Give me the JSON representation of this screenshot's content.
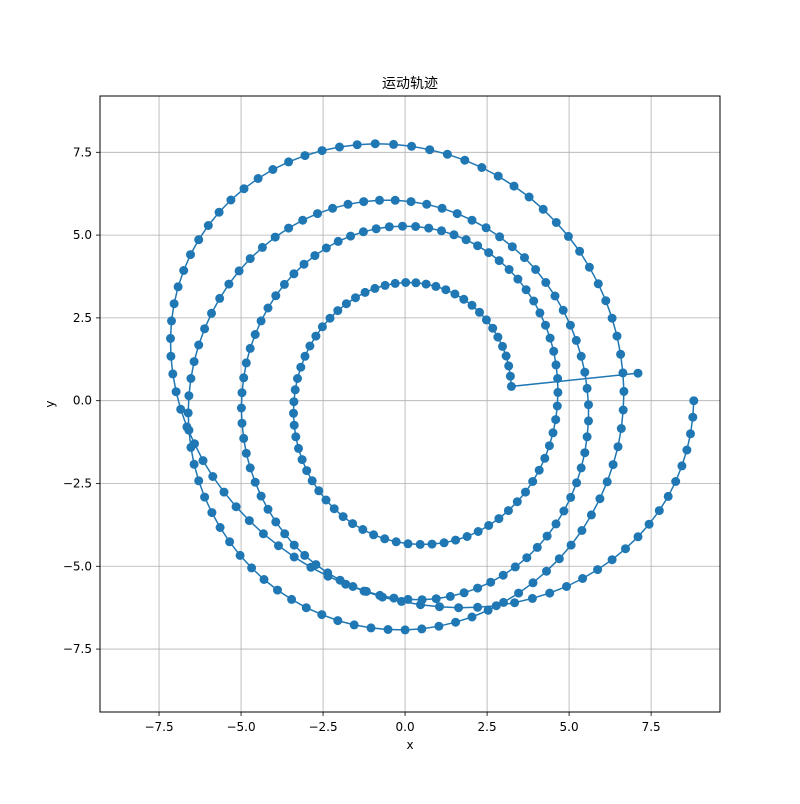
{
  "chart_data": {
    "type": "line",
    "title": "运动轨迹",
    "xlabel": "x",
    "ylabel": "y",
    "xlim": [
      -9.3,
      9.6
    ],
    "ylim": [
      -9.4,
      9.2
    ],
    "xticks": [
      -7.5,
      -5.0,
      -2.5,
      0.0,
      2.5,
      5.0,
      7.5
    ],
    "xtick_labels": [
      "−7.5",
      "−5.0",
      "−2.5",
      "0.0",
      "2.5",
      "5.0",
      "7.5"
    ],
    "yticks": [
      -7.5,
      -5.0,
      -2.5,
      0.0,
      2.5,
      5.0,
      7.5
    ],
    "ytick_labels": [
      "−7.5",
      "−5.0",
      "−2.5",
      "0.0",
      "2.5",
      "5.0",
      "7.5"
    ],
    "grid": true,
    "legend": false,
    "marker": "circle",
    "color": "#1f77b4",
    "series": [
      {
        "values": [
          [
            8.8,
            0.0
          ],
          [
            8.77,
            -0.5
          ],
          [
            8.7,
            -1.0
          ],
          [
            8.59,
            -1.49
          ],
          [
            8.44,
            -1.97
          ],
          [
            8.25,
            -2.44
          ],
          [
            8.02,
            -2.89
          ],
          [
            7.75,
            -3.32
          ],
          [
            7.44,
            -3.73
          ],
          [
            7.1,
            -4.11
          ],
          [
            6.72,
            -4.47
          ],
          [
            6.31,
            -4.8
          ],
          [
            5.87,
            -5.1
          ],
          [
            5.41,
            -5.37
          ],
          [
            4.92,
            -5.61
          ],
          [
            4.41,
            -5.81
          ],
          [
            3.88,
            -5.97
          ],
          [
            3.34,
            -6.1
          ],
          [
            2.78,
            -6.19
          ],
          [
            2.21,
            -6.24
          ],
          [
            1.63,
            -6.25
          ],
          [
            1.05,
            -6.22
          ],
          [
            0.47,
            -6.16
          ],
          [
            -0.11,
            -6.06
          ],
          [
            -0.69,
            -5.93
          ],
          [
            -1.25,
            -5.75
          ],
          [
            -1.81,
            -5.54
          ],
          [
            -2.35,
            -5.3
          ],
          [
            -2.87,
            -5.03
          ],
          [
            -3.38,
            -4.72
          ],
          [
            -3.86,
            -4.38
          ],
          [
            -4.32,
            -4.02
          ],
          [
            -4.75,
            -3.62
          ],
          [
            -5.15,
            -3.2
          ],
          [
            -5.52,
            -2.76
          ],
          [
            -5.86,
            -2.29
          ],
          [
            -6.16,
            -1.81
          ],
          [
            -6.42,
            -1.3
          ],
          [
            -6.65,
            -0.79
          ],
          [
            -6.84,
            -0.26
          ],
          [
            -6.98,
            0.27
          ],
          [
            -7.08,
            0.81
          ],
          [
            -7.14,
            1.34
          ],
          [
            -7.15,
            1.88
          ],
          [
            -7.12,
            2.41
          ],
          [
            -7.04,
            2.93
          ],
          [
            -6.92,
            3.44
          ],
          [
            -6.75,
            3.93
          ],
          [
            -6.54,
            4.41
          ],
          [
            -6.29,
            4.86
          ],
          [
            -6.0,
            5.29
          ],
          [
            -5.67,
            5.69
          ],
          [
            -5.31,
            6.06
          ],
          [
            -4.91,
            6.4
          ],
          [
            -4.48,
            6.71
          ],
          [
            -4.03,
            6.98
          ],
          [
            -3.55,
            7.21
          ],
          [
            -3.05,
            7.4
          ],
          [
            -2.53,
            7.55
          ],
          [
            -2.0,
            7.66
          ],
          [
            -1.46,
            7.73
          ],
          [
            -0.91,
            7.76
          ],
          [
            -0.35,
            7.74
          ],
          [
            0.2,
            7.68
          ],
          [
            0.75,
            7.58
          ],
          [
            1.29,
            7.44
          ],
          [
            1.82,
            7.26
          ],
          [
            2.34,
            7.04
          ],
          [
            2.84,
            6.78
          ],
          [
            3.32,
            6.48
          ],
          [
            3.78,
            6.15
          ],
          [
            4.21,
            5.78
          ],
          [
            4.61,
            5.38
          ],
          [
            4.98,
            4.96
          ],
          [
            5.32,
            4.51
          ],
          [
            5.62,
            4.03
          ],
          [
            5.89,
            3.53
          ],
          [
            6.12,
            3.02
          ],
          [
            6.31,
            2.49
          ],
          [
            6.46,
            1.95
          ],
          [
            6.57,
            1.4
          ],
          [
            6.64,
            0.84
          ],
          [
            6.67,
            0.28
          ],
          [
            6.65,
            -0.28
          ],
          [
            6.59,
            -0.84
          ],
          [
            6.49,
            -1.39
          ],
          [
            6.34,
            -1.93
          ],
          [
            6.16,
            -2.45
          ],
          [
            5.94,
            -2.96
          ],
          [
            5.68,
            -3.45
          ],
          [
            5.39,
            -3.92
          ],
          [
            5.06,
            -4.36
          ],
          [
            4.7,
            -4.77
          ],
          [
            4.31,
            -5.15
          ],
          [
            3.9,
            -5.5
          ],
          [
            3.46,
            -5.81
          ],
          [
            3.0,
            -6.09
          ],
          [
            2.53,
            -6.33
          ],
          [
            2.04,
            -6.53
          ],
          [
            1.54,
            -6.69
          ],
          [
            1.03,
            -6.81
          ],
          [
            0.51,
            -6.89
          ],
          [
            0.0,
            -6.92
          ],
          [
            -0.52,
            -6.91
          ],
          [
            -1.04,
            -6.86
          ],
          [
            -1.55,
            -6.77
          ],
          [
            -2.05,
            -6.64
          ],
          [
            -2.54,
            -6.46
          ],
          [
            -3.01,
            -6.25
          ],
          [
            -3.46,
            -6.0
          ],
          [
            -3.89,
            -5.72
          ],
          [
            -4.3,
            -5.4
          ],
          [
            -4.68,
            -5.05
          ],
          [
            -5.03,
            -4.67
          ],
          [
            -5.35,
            -4.26
          ],
          [
            -5.64,
            -3.83
          ],
          [
            -5.89,
            -3.38
          ],
          [
            -6.11,
            -2.91
          ],
          [
            -6.29,
            -2.42
          ],
          [
            -6.43,
            -1.92
          ],
          [
            -6.53,
            -1.41
          ],
          [
            -6.59,
            -0.89
          ],
          [
            -6.61,
            -0.37
          ],
          [
            -6.59,
            0.15
          ],
          [
            -6.53,
            0.67
          ],
          [
            -6.43,
            1.18
          ],
          [
            -6.29,
            1.68
          ],
          [
            -6.11,
            2.17
          ],
          [
            -5.9,
            2.64
          ],
          [
            -5.65,
            3.09
          ],
          [
            -5.37,
            3.52
          ],
          [
            -5.06,
            3.92
          ],
          [
            -4.72,
            4.29
          ],
          [
            -4.35,
            4.63
          ],
          [
            -3.96,
            4.94
          ],
          [
            -3.55,
            5.21
          ],
          [
            -3.12,
            5.45
          ],
          [
            -2.67,
            5.65
          ],
          [
            -2.21,
            5.81
          ],
          [
            -1.74,
            5.93
          ],
          [
            -1.26,
            6.01
          ],
          [
            -0.78,
            6.05
          ],
          [
            -0.3,
            6.05
          ],
          [
            0.18,
            6.01
          ],
          [
            0.66,
            5.93
          ],
          [
            1.13,
            5.81
          ],
          [
            1.59,
            5.65
          ],
          [
            2.04,
            5.45
          ],
          [
            2.47,
            5.22
          ],
          [
            2.88,
            4.95
          ],
          [
            3.27,
            4.65
          ],
          [
            3.64,
            4.32
          ],
          [
            3.98,
            3.96
          ],
          [
            4.29,
            3.57
          ],
          [
            4.57,
            3.16
          ],
          [
            4.82,
            2.73
          ],
          [
            5.04,
            2.28
          ],
          [
            5.22,
            1.82
          ],
          [
            5.37,
            1.34
          ],
          [
            5.48,
            0.86
          ],
          [
            5.55,
            0.37
          ],
          [
            5.59,
            -0.12
          ],
          [
            5.59,
            -0.61
          ],
          [
            5.55,
            -1.09
          ],
          [
            5.48,
            -1.57
          ],
          [
            5.37,
            -2.03
          ],
          [
            5.23,
            -2.48
          ],
          [
            5.05,
            -2.92
          ],
          [
            4.84,
            -3.33
          ],
          [
            4.6,
            -3.72
          ],
          [
            4.33,
            -4.09
          ],
          [
            4.03,
            -4.43
          ],
          [
            3.71,
            -4.74
          ],
          [
            3.36,
            -5.02
          ],
          [
            2.99,
            -5.27
          ],
          [
            2.61,
            -5.48
          ],
          [
            2.21,
            -5.66
          ],
          [
            1.8,
            -5.8
          ],
          [
            1.38,
            -5.91
          ],
          [
            0.95,
            -5.98
          ],
          [
            0.52,
            -6.01
          ],
          [
            0.09,
            -6.0
          ],
          [
            -0.34,
            -5.96
          ],
          [
            -0.77,
            -5.88
          ],
          [
            -1.18,
            -5.76
          ],
          [
            -1.59,
            -5.61
          ],
          [
            -1.98,
            -5.42
          ],
          [
            -2.36,
            -5.2
          ],
          [
            -2.72,
            -4.95
          ],
          [
            -3.06,
            -4.67
          ],
          [
            -3.38,
            -4.36
          ],
          [
            -3.67,
            -4.02
          ],
          [
            -3.94,
            -3.66
          ],
          [
            -4.18,
            -3.28
          ],
          [
            -4.39,
            -2.88
          ],
          [
            -4.57,
            -2.46
          ],
          [
            -4.72,
            -2.03
          ],
          [
            -4.84,
            -1.59
          ],
          [
            -4.92,
            -1.14
          ],
          [
            -4.97,
            -0.68
          ],
          [
            -4.99,
            -0.22
          ],
          [
            -4.97,
            0.24
          ],
          [
            -4.92,
            0.69
          ],
          [
            -4.84,
            1.14
          ],
          [
            -4.72,
            1.58
          ],
          [
            -4.57,
            2.0
          ],
          [
            -4.39,
            2.41
          ],
          [
            -4.18,
            2.8
          ],
          [
            -3.94,
            3.17
          ],
          [
            -3.68,
            3.51
          ],
          [
            -3.39,
            3.83
          ],
          [
            -3.08,
            4.12
          ],
          [
            -2.75,
            4.38
          ],
          [
            -2.4,
            4.61
          ],
          [
            -2.04,
            4.81
          ],
          [
            -1.66,
            4.97
          ],
          [
            -1.27,
            5.1
          ],
          [
            -0.88,
            5.19
          ],
          [
            -0.48,
            5.25
          ],
          [
            -0.08,
            5.27
          ],
          [
            0.32,
            5.26
          ],
          [
            0.72,
            5.21
          ],
          [
            1.11,
            5.13
          ],
          [
            1.49,
            5.01
          ],
          [
            1.86,
            4.86
          ],
          [
            2.21,
            4.68
          ],
          [
            2.55,
            4.47
          ],
          [
            2.87,
            4.23
          ],
          [
            3.17,
            3.96
          ],
          [
            3.44,
            3.67
          ],
          [
            3.69,
            3.35
          ],
          [
            3.92,
            3.01
          ],
          [
            4.11,
            2.65
          ],
          [
            4.28,
            2.28
          ],
          [
            4.42,
            1.89
          ],
          [
            4.53,
            1.49
          ],
          [
            4.6,
            1.08
          ],
          [
            4.65,
            0.67
          ],
          [
            4.66,
            0.25
          ],
          [
            4.64,
            -0.16
          ],
          [
            4.59,
            -0.57
          ],
          [
            4.51,
            -0.97
          ],
          [
            4.4,
            -1.36
          ],
          [
            4.26,
            -1.74
          ],
          [
            4.09,
            -2.1
          ],
          [
            3.89,
            -2.44
          ],
          [
            3.67,
            -2.76
          ],
          [
            3.42,
            -3.05
          ],
          [
            3.15,
            -3.32
          ],
          [
            2.86,
            -3.56
          ],
          [
            2.55,
            -3.77
          ],
          [
            2.23,
            -3.95
          ],
          [
            1.89,
            -4.1
          ],
          [
            1.54,
            -4.21
          ],
          [
            1.19,
            -4.29
          ],
          [
            0.82,
            -4.33
          ],
          [
            0.46,
            -4.34
          ],
          [
            0.09,
            -4.32
          ],
          [
            -0.27,
            -4.26
          ],
          [
            -0.62,
            -4.17
          ],
          [
            -0.96,
            -4.05
          ],
          [
            -1.29,
            -3.89
          ],
          [
            -1.6,
            -3.71
          ],
          [
            -1.89,
            -3.5
          ],
          [
            -2.16,
            -3.26
          ],
          [
            -2.41,
            -3.0
          ],
          [
            -2.63,
            -2.72
          ],
          [
            -2.83,
            -2.42
          ],
          [
            -3.0,
            -2.11
          ],
          [
            -3.14,
            -1.78
          ],
          [
            -3.25,
            -1.44
          ],
          [
            -3.33,
            -1.09
          ],
          [
            -3.38,
            -0.74
          ],
          [
            -3.4,
            -0.38
          ],
          [
            -3.39,
            -0.03
          ],
          [
            -3.35,
            0.33
          ],
          [
            -3.28,
            0.67
          ],
          [
            -3.18,
            1.01
          ],
          [
            -3.05,
            1.34
          ],
          [
            -2.9,
            1.65
          ],
          [
            -2.72,
            1.95
          ],
          [
            -2.52,
            2.23
          ],
          [
            -2.29,
            2.49
          ],
          [
            -2.05,
            2.72
          ],
          [
            -1.79,
            2.93
          ],
          [
            -1.51,
            3.11
          ],
          [
            -1.22,
            3.27
          ],
          [
            -0.92,
            3.39
          ],
          [
            -0.61,
            3.48
          ],
          [
            -0.3,
            3.54
          ],
          [
            0.02,
            3.57
          ],
          [
            0.33,
            3.56
          ],
          [
            0.64,
            3.52
          ],
          [
            0.94,
            3.45
          ],
          [
            1.24,
            3.35
          ],
          [
            1.52,
            3.22
          ],
          [
            1.79,
            3.06
          ],
          [
            2.04,
            2.88
          ],
          [
            2.27,
            2.67
          ],
          [
            2.48,
            2.44
          ],
          [
            2.67,
            2.19
          ],
          [
            2.83,
            1.92
          ],
          [
            2.97,
            1.64
          ],
          [
            3.08,
            1.35
          ],
          [
            3.16,
            1.05
          ],
          [
            3.21,
            0.74
          ],
          [
            3.24,
            0.43
          ],
          [
            7.1,
            0.83
          ]
        ]
      }
    ]
  }
}
